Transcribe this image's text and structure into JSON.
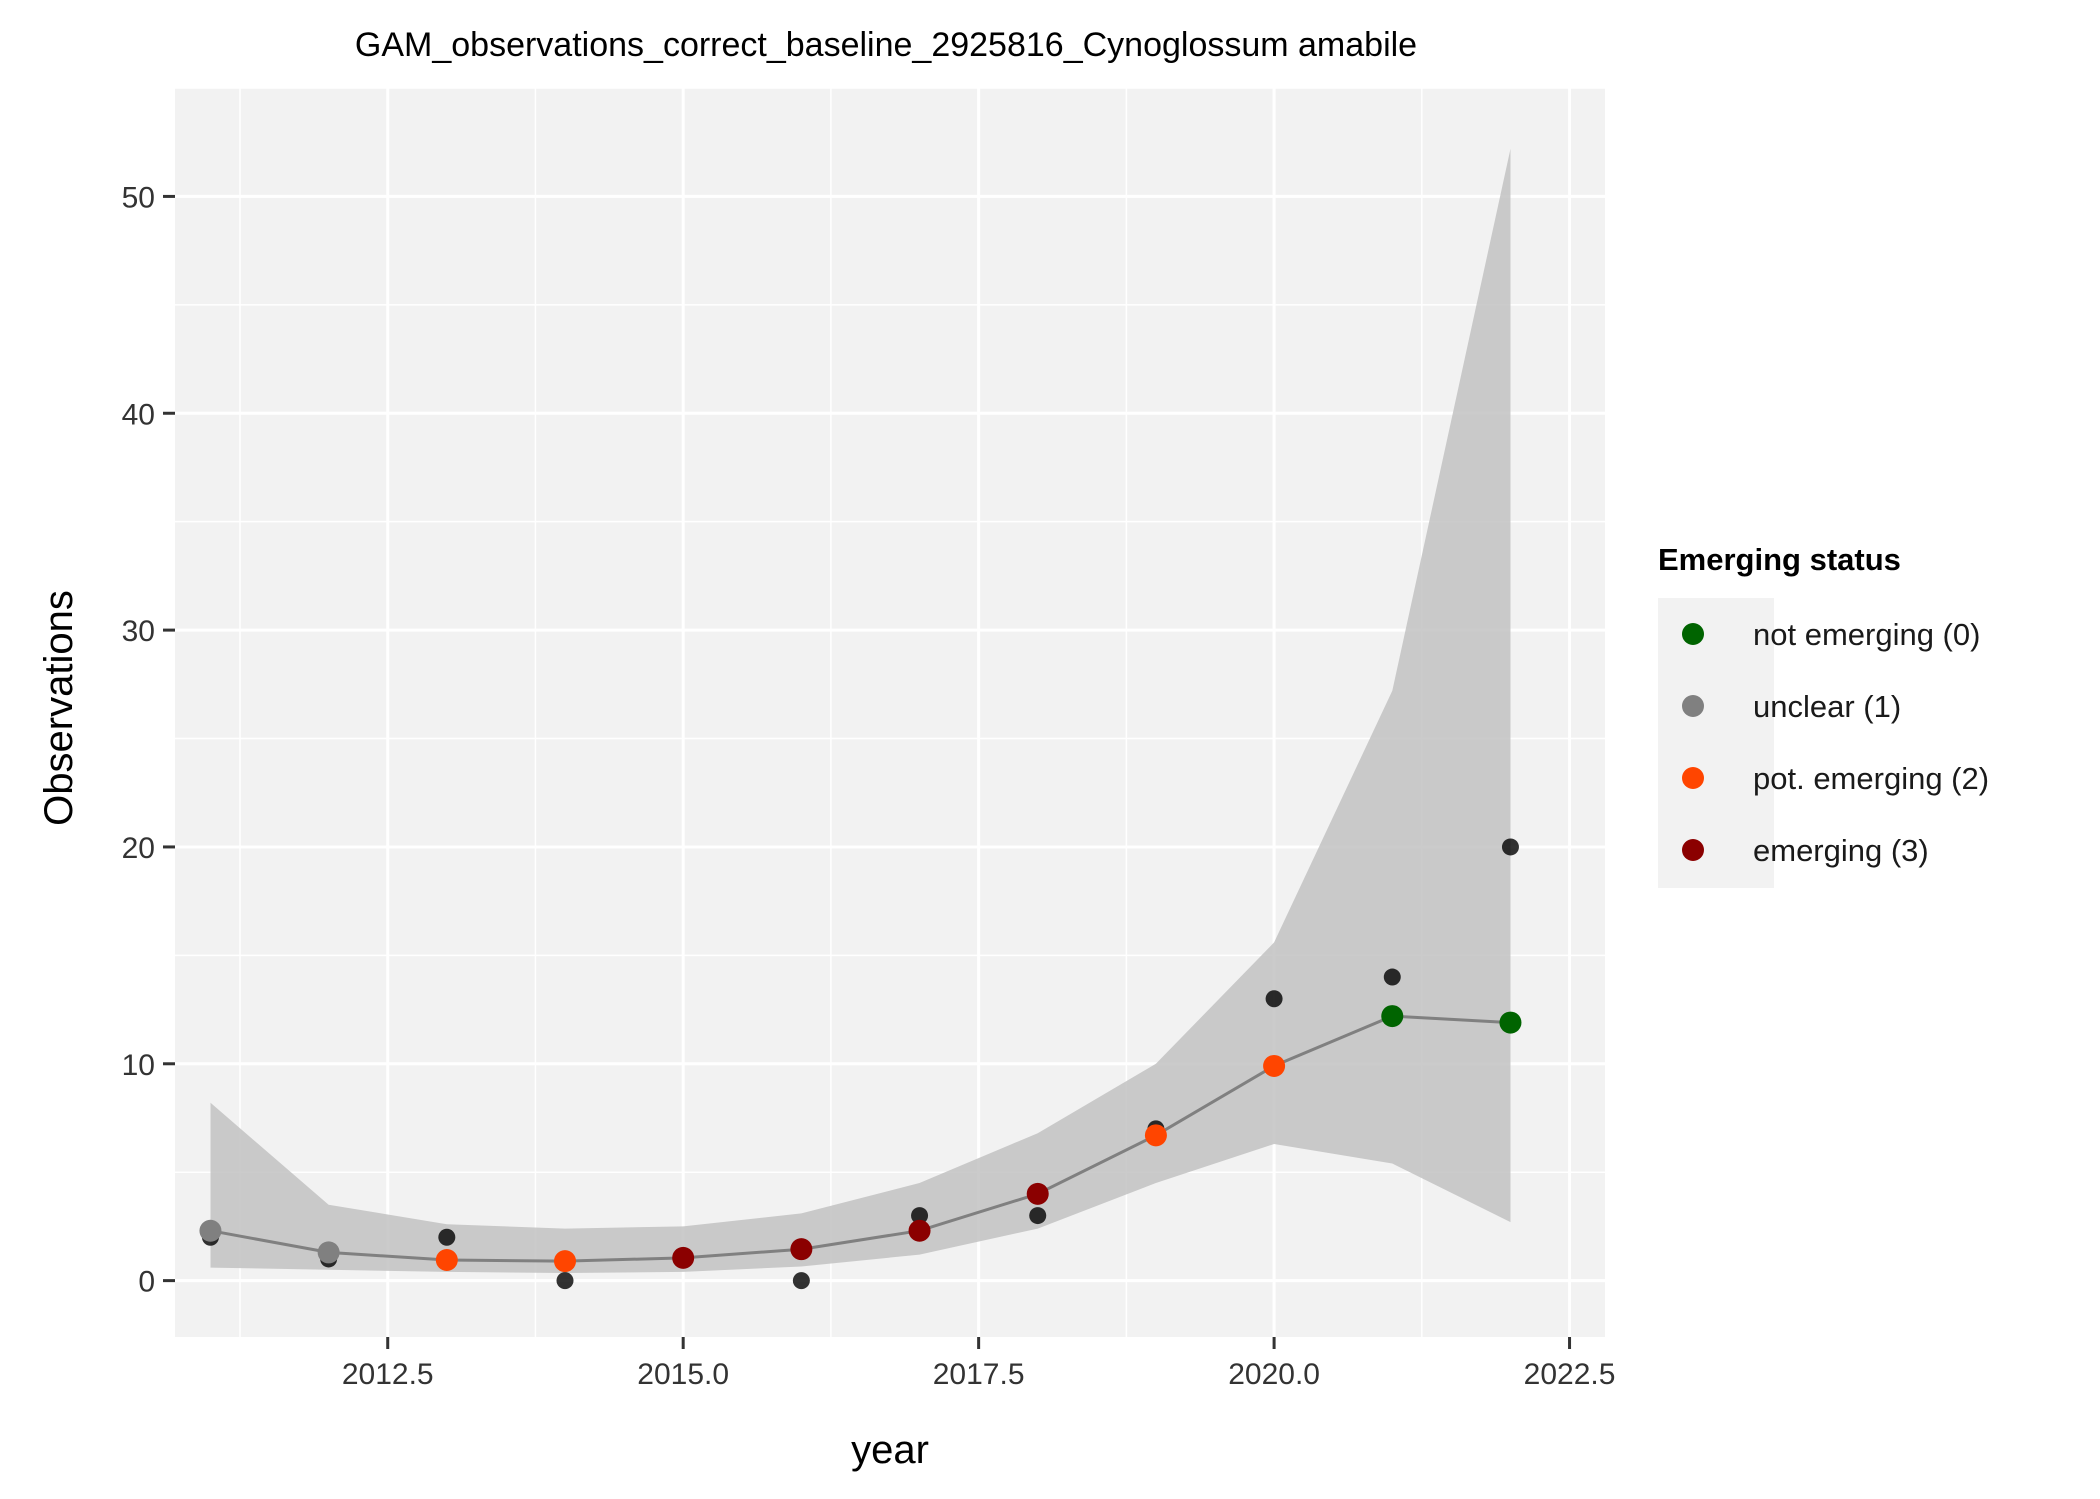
{
  "chart_data": {
    "type": "line",
    "title": "GAM_observations_correct_baseline_2925816_Cynoglossum amabile",
    "xlabel": "year",
    "ylabel": "Observations",
    "xlim": [
      2010.7,
      2022.8
    ],
    "ylim": [
      -2.6,
      55
    ],
    "x_ticks": [
      2012.5,
      2015.0,
      2017.5,
      2020.0,
      2022.5
    ],
    "x_tick_labels": [
      "2012.5",
      "2015.0",
      "2017.5",
      "2020.0",
      "2022.5"
    ],
    "y_ticks": [
      0,
      10,
      20,
      30,
      40,
      50
    ],
    "y_tick_labels": [
      "0",
      "10",
      "20",
      "30",
      "40",
      "50"
    ],
    "grid": true,
    "legend": {
      "title": "Emerging status",
      "placement": "right",
      "entries": [
        {
          "label": "not emerging (0)",
          "color": "#006400"
        },
        {
          "label": "unclear (1)",
          "color": "#808080"
        },
        {
          "label": "pot. emerging (2)",
          "color": "#ff4500"
        },
        {
          "label": "emerging (3)",
          "color": "#8b0000"
        }
      ]
    },
    "observed": {
      "x": [
        2011,
        2012,
        2013,
        2014,
        2015,
        2016,
        2017,
        2018,
        2019,
        2020,
        2021,
        2022
      ],
      "y": [
        2,
        1,
        2,
        0,
        1,
        0,
        3,
        3,
        7,
        13,
        14,
        20
      ],
      "color": "#000000"
    },
    "fit": {
      "x": [
        2011,
        2012,
        2013,
        2014,
        2015,
        2016,
        2017,
        2018,
        2019,
        2020,
        2021,
        2022
      ],
      "y": [
        2.3,
        1.3,
        0.95,
        0.9,
        1.05,
        1.45,
        2.3,
        4.0,
        6.7,
        9.9,
        12.2,
        11.9
      ],
      "lower": [
        0.6,
        0.5,
        0.4,
        0.35,
        0.4,
        0.65,
        1.2,
        2.4,
        4.5,
        6.3,
        5.4,
        2.7
      ],
      "upper": [
        8.2,
        3.5,
        2.6,
        2.4,
        2.5,
        3.1,
        4.5,
        6.8,
        10.0,
        15.6,
        27.2,
        52.2
      ],
      "status": [
        1,
        1,
        2,
        2,
        3,
        3,
        3,
        3,
        2,
        2,
        0,
        0
      ],
      "line_color": "#808080",
      "band_color": "#bebebe"
    },
    "colors": {
      "panel": "#f2f2f2",
      "grid": "#ffffff"
    }
  }
}
